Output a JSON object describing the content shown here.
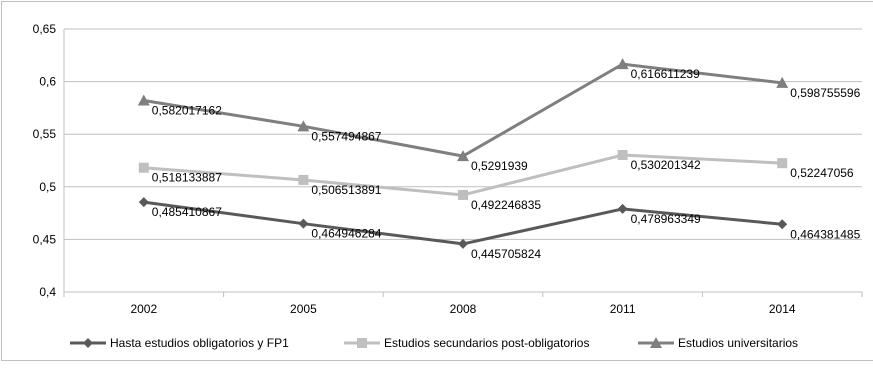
{
  "chart_data": {
    "type": "line",
    "categories": [
      "2002",
      "2005",
      "2008",
      "2011",
      "2014"
    ],
    "ylim": [
      0.4,
      0.65
    ],
    "y_ticks": [
      "0,4",
      "0,45",
      "0,5",
      "0,55",
      "0,6",
      "0,65"
    ],
    "grid": true,
    "legend_position": "bottom",
    "series": [
      {
        "name": "Hasta estudios obligatorios y FP1",
        "marker": "diamond",
        "color": "#595959",
        "values": [
          0.485410867,
          0.464946284,
          0.445705824,
          0.478963349,
          0.464381485
        ],
        "labels": [
          "0,485410867",
          "0,464946284",
          "0,445705824",
          "0,478963349",
          "0,464381485"
        ]
      },
      {
        "name": "Estudios secundarios post-obligatorios",
        "marker": "square",
        "color": "#bfbfbf",
        "values": [
          0.518133887,
          0.506513891,
          0.492246835,
          0.530201342,
          0.52247056
        ],
        "labels": [
          "0,518133887",
          "0,506513891",
          "0,492246835",
          "0,530201342",
          "0,52247056"
        ]
      },
      {
        "name": "Estudios universitarios",
        "marker": "triangle",
        "color": "#7f7f7f",
        "values": [
          0.582017162,
          0.557494867,
          0.5291939,
          0.616611239,
          0.598755596
        ],
        "labels": [
          "0,582017162",
          "0,557494867",
          "0,5291939",
          "0,616611239",
          "0,598755596"
        ]
      }
    ]
  }
}
